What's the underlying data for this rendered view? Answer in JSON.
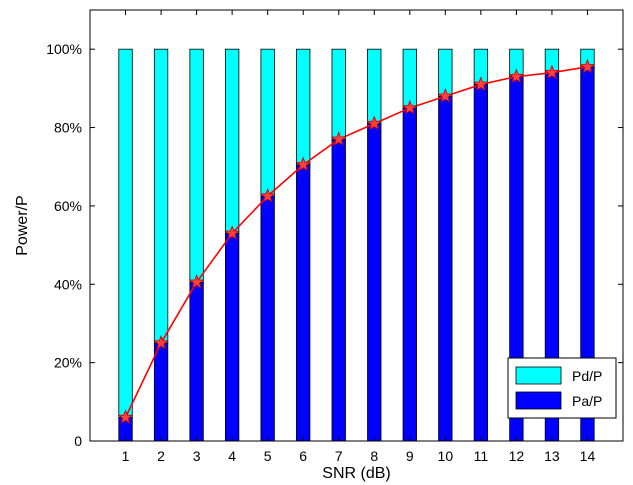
{
  "chart_data": {
    "type": "bar",
    "stacked": true,
    "categories": [
      "1",
      "2",
      "3",
      "4",
      "5",
      "6",
      "7",
      "8",
      "9",
      "10",
      "11",
      "12",
      "13",
      "14"
    ],
    "series": [
      {
        "name": "Pa/P",
        "color": "#0000ff",
        "values": [
          6,
          25,
          40.5,
          53,
          62.5,
          70.5,
          77,
          81,
          85,
          88,
          91,
          93,
          94,
          95.5
        ]
      },
      {
        "name": "Pd/P",
        "color": "#00ffff",
        "values": [
          94,
          75,
          59.5,
          47,
          37.5,
          29.5,
          23,
          19,
          15,
          12,
          9,
          7,
          6,
          4.5
        ]
      }
    ],
    "line": {
      "color": "#ff0000",
      "marker": "star",
      "values": [
        6,
        25,
        40.5,
        53,
        62.5,
        70.5,
        77,
        81,
        85,
        88,
        91,
        93,
        94,
        95.5
      ]
    },
    "xlabel": "SNR (dB)",
    "ylabel": "Power/P",
    "ylim": [
      0,
      110
    ],
    "yticks": [
      0,
      20,
      40,
      60,
      80,
      100
    ],
    "ytick_labels": [
      "0",
      "20%",
      "40%",
      "60%",
      "80%",
      "100%"
    ],
    "grid": false,
    "legend": {
      "position": "bottom-right",
      "entries": [
        "Pd/P",
        "Pa/P"
      ]
    }
  }
}
